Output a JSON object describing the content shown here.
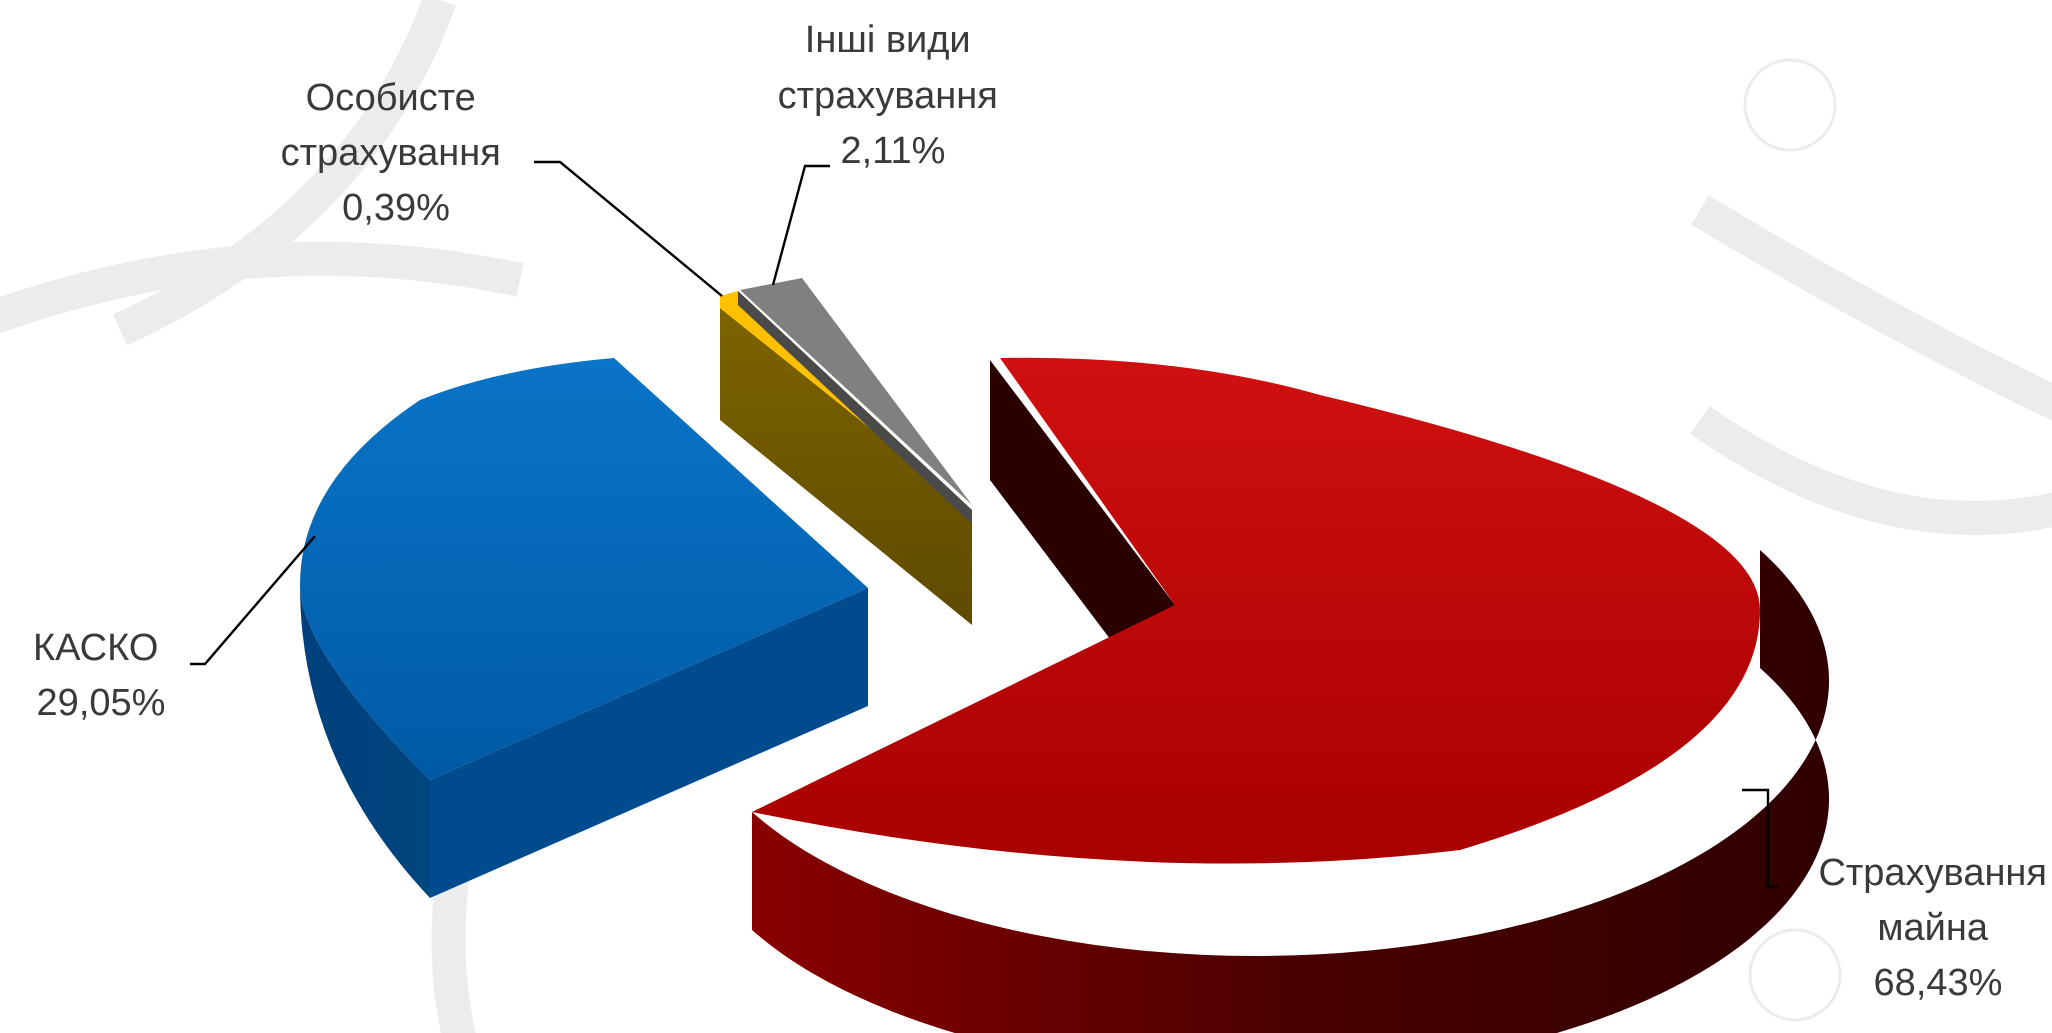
{
  "chart_data": {
    "type": "pie",
    "three_d": true,
    "exploded": true,
    "title": "",
    "legend": "none",
    "slices": [
      {
        "label_lines": [
          "Страхування",
          "майна"
        ],
        "value_label": "68,43%",
        "value": 68.43,
        "color": "#c00000"
      },
      {
        "label_lines": [
          "КАСКО"
        ],
        "value_label": "29,05%",
        "value": 29.05,
        "color": "#0070c0"
      },
      {
        "label_lines": [
          "Особисте",
          "страхування"
        ],
        "value_label": "0,39%",
        "value": 0.39,
        "color": "#ffc000"
      },
      {
        "label_lines": [
          "Інші види",
          "страхування"
        ],
        "value_label": "2,11%",
        "value": 2.11,
        "color": "#7f7f7f"
      }
    ]
  }
}
